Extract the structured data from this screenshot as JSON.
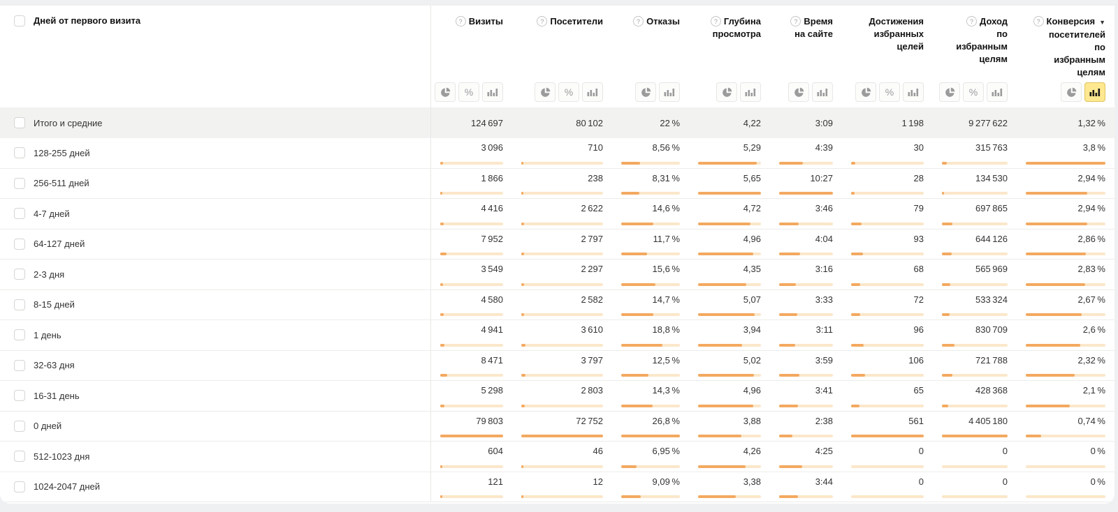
{
  "colors": {
    "bar_fill": "#f3a960",
    "bar_track": "#fbe7ca",
    "selected_toggle_bg": "#ffe88f",
    "totals_row_bg": "#f2f2f0",
    "page_bg": "#eff0f2"
  },
  "table": {
    "dimension_header": "Дней от первого визита",
    "columns": [
      {
        "lines": [
          "Визиты"
        ],
        "help": true,
        "sort": false,
        "toggles": [
          "pie",
          "percent",
          "bars"
        ],
        "selected": ""
      },
      {
        "lines": [
          "Посетители"
        ],
        "help": true,
        "sort": false,
        "toggles": [
          "pie",
          "percent",
          "bars"
        ],
        "selected": ""
      },
      {
        "lines": [
          "Отказы"
        ],
        "help": true,
        "sort": false,
        "toggles": [
          "pie",
          "bars"
        ],
        "selected": ""
      },
      {
        "lines": [
          "Глубина",
          "просмотра"
        ],
        "help": true,
        "sort": false,
        "toggles": [
          "pie",
          "bars"
        ],
        "selected": ""
      },
      {
        "lines": [
          "Время",
          "на сайте"
        ],
        "help": true,
        "sort": false,
        "toggles": [
          "pie",
          "bars"
        ],
        "selected": ""
      },
      {
        "lines": [
          "Достижения",
          "избранных",
          "целей"
        ],
        "help": false,
        "sort": false,
        "toggles": [
          "pie",
          "percent",
          "bars"
        ],
        "selected": ""
      },
      {
        "lines": [
          "Доход",
          "по",
          "избранным",
          "целям"
        ],
        "help": true,
        "sort": false,
        "toggles": [
          "pie",
          "percent",
          "bars"
        ],
        "selected": ""
      },
      {
        "lines": [
          "Конверсия",
          "посетителей",
          "по",
          "избранным",
          "целям"
        ],
        "help": true,
        "sort": "desc",
        "toggles": [
          "pie",
          "bars"
        ],
        "selected": "bars"
      }
    ],
    "totals_row": {
      "label": "Итого и средние",
      "values": [
        "124 697",
        "80 102",
        "22 %",
        "4,22",
        "3:09",
        "1 198",
        "9 277 622",
        "1,32 %"
      ]
    },
    "rows": [
      {
        "label": "128-255 дней",
        "values": [
          "3 096",
          "710",
          "8,56 %",
          "5,29",
          "4:39",
          "30",
          "315 763",
          "3,8 %"
        ],
        "fills": [
          3.9,
          1.0,
          31.9,
          93.6,
          44.5,
          5.3,
          7.2,
          100
        ]
      },
      {
        "label": "256-511 дней",
        "values": [
          "1 866",
          "238",
          "8,31 %",
          "5,65",
          "10:27",
          "28",
          "134 530",
          "2,94 %"
        ],
        "fills": [
          2.3,
          0.3,
          31.0,
          100,
          100,
          5.0,
          3.1,
          77.4
        ]
      },
      {
        "label": "4-7 дней",
        "values": [
          "4 416",
          "2 622",
          "14,6 %",
          "4,72",
          "3:46",
          "79",
          "697 865",
          "2,94 %"
        ],
        "fills": [
          5.5,
          3.6,
          54.5,
          83.5,
          36.0,
          14.1,
          15.8,
          77.4
        ]
      },
      {
        "label": "64-127 дней",
        "values": [
          "7 952",
          "2 797",
          "11,7 %",
          "4,96",
          "4:04",
          "93",
          "644 126",
          "2,86 %"
        ],
        "fills": [
          10.0,
          3.8,
          43.7,
          87.8,
          38.9,
          16.6,
          14.6,
          75.3
        ]
      },
      {
        "label": "2-3 дня",
        "values": [
          "3 549",
          "2 297",
          "15,6 %",
          "4,35",
          "3:16",
          "68",
          "565 969",
          "2,83 %"
        ],
        "fills": [
          4.4,
          3.2,
          58.2,
          77.0,
          31.3,
          12.1,
          12.8,
          74.5
        ]
      },
      {
        "label": "8-15 дней",
        "values": [
          "4 580",
          "2 582",
          "14,7 %",
          "5,07",
          "3:33",
          "72",
          "533 324",
          "2,67 %"
        ],
        "fills": [
          5.7,
          3.5,
          54.9,
          89.7,
          34.0,
          12.8,
          12.1,
          70.3
        ]
      },
      {
        "label": "1 день",
        "values": [
          "4 941",
          "3 610",
          "18,8 %",
          "3,94",
          "3:11",
          "96",
          "830 709",
          "2,6 %"
        ],
        "fills": [
          6.2,
          5.0,
          70.1,
          69.7,
          30.5,
          17.1,
          18.9,
          68.4
        ]
      },
      {
        "label": "32-63 дня",
        "values": [
          "8 471",
          "3 797",
          "12,5 %",
          "5,02",
          "3:59",
          "106",
          "721 788",
          "2,32 %"
        ],
        "fills": [
          10.6,
          5.2,
          46.6,
          88.8,
          38.1,
          18.9,
          16.4,
          61.1
        ]
      },
      {
        "label": "16-31 день",
        "values": [
          "5 298",
          "2 803",
          "14,3 %",
          "4,96",
          "3:41",
          "65",
          "428 368",
          "2,1 %"
        ],
        "fills": [
          6.6,
          3.9,
          53.4,
          87.8,
          35.2,
          11.6,
          9.7,
          55.3
        ]
      },
      {
        "label": "0 дней",
        "values": [
          "79 803",
          "72 752",
          "26,8 %",
          "3,88",
          "2:38",
          "561",
          "4 405 180",
          "0,74 %"
        ],
        "fills": [
          100,
          100,
          100,
          68.7,
          25.2,
          100,
          100,
          19.5
        ]
      },
      {
        "label": "512-1023 дня",
        "values": [
          "604",
          "46",
          "6,95 %",
          "4,26",
          "4:25",
          "0",
          "0",
          "0 %"
        ],
        "fills": [
          0.8,
          0.1,
          25.9,
          75.4,
          42.3,
          0,
          0,
          0
        ]
      },
      {
        "label": "1024-2047 дней",
        "values": [
          "121",
          "12",
          "9,09 %",
          "3,38",
          "3:44",
          "0",
          "0",
          "0 %"
        ],
        "fills": [
          0.2,
          0.1,
          33.9,
          59.8,
          35.7,
          0,
          0,
          0
        ]
      }
    ]
  }
}
